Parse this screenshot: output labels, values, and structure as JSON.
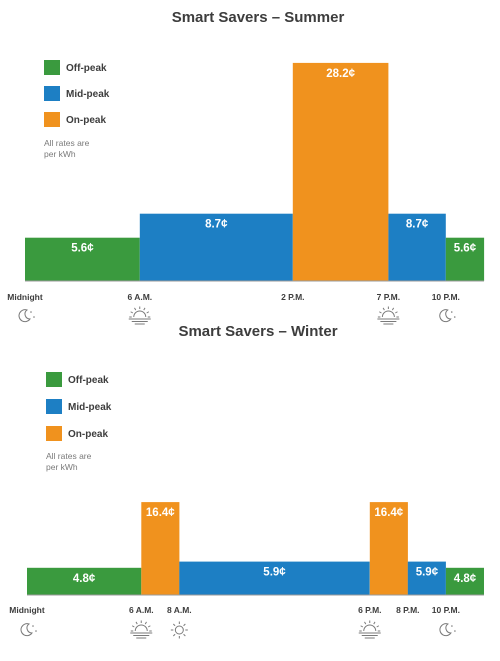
{
  "colors": {
    "off_peak": "#3a9a3e",
    "mid_peak": "#1d7fc4",
    "on_peak": "#f0921e",
    "baseline": "#9a9a9a",
    "text": "#3d3d3d"
  },
  "chart_data": [
    {
      "type": "bar",
      "title": "Smart Savers – Summer",
      "legend": [
        {
          "label": "Off-peak",
          "period": "off"
        },
        {
          "label": "Mid-peak",
          "period": "mid"
        },
        {
          "label": "On-peak",
          "period": "on"
        }
      ],
      "note": [
        "All rates are",
        "per kWh"
      ],
      "x_unit": "hour of day",
      "xlim": [
        0,
        24
      ],
      "ylim": [
        0,
        30
      ],
      "segments": [
        {
          "start": 0,
          "end": 6,
          "value": 5.6,
          "label": "5.6¢",
          "period": "off"
        },
        {
          "start": 6,
          "end": 14,
          "value": 8.7,
          "label": "8.7¢",
          "period": "mid"
        },
        {
          "start": 14,
          "end": 19,
          "value": 28.2,
          "label": "28.2¢",
          "period": "on"
        },
        {
          "start": 19,
          "end": 22,
          "value": 8.7,
          "label": "8.7¢",
          "period": "mid"
        },
        {
          "start": 22,
          "end": 24,
          "value": 5.6,
          "label": "5.6¢",
          "period": "off"
        }
      ],
      "ticks": [
        {
          "hour": 0,
          "label": "Midnight",
          "icon": "moon-icon"
        },
        {
          "hour": 6,
          "label": "6 A.M.",
          "icon": "sunrise-icon"
        },
        {
          "hour": 14,
          "label": "2 P.M.",
          "icon": ""
        },
        {
          "hour": 19,
          "label": "7 P.M.",
          "icon": "sunset-icon"
        },
        {
          "hour": 22,
          "label": "10 P.M.",
          "icon": "moon-icon"
        }
      ]
    },
    {
      "type": "bar",
      "title": "Smart Savers – Winter",
      "legend": [
        {
          "label": "Off-peak",
          "period": "off"
        },
        {
          "label": "Mid-peak",
          "period": "mid"
        },
        {
          "label": "On-peak",
          "period": "on"
        }
      ],
      "note": [
        "All rates are",
        "per kWh"
      ],
      "x_unit": "hour of day",
      "xlim": [
        0,
        24
      ],
      "ylim": [
        0,
        30
      ],
      "segments": [
        {
          "start": 0,
          "end": 6,
          "value": 4.8,
          "label": "4.8¢",
          "period": "off"
        },
        {
          "start": 6,
          "end": 8,
          "value": 16.4,
          "label": "16.4¢",
          "period": "on"
        },
        {
          "start": 8,
          "end": 18,
          "value": 5.9,
          "label": "5.9¢",
          "period": "mid"
        },
        {
          "start": 18,
          "end": 20,
          "value": 16.4,
          "label": "16.4¢",
          "period": "on"
        },
        {
          "start": 20,
          "end": 22,
          "value": 5.9,
          "label": "5.9¢",
          "period": "mid"
        },
        {
          "start": 22,
          "end": 24,
          "value": 4.8,
          "label": "4.8¢",
          "period": "off"
        }
      ],
      "ticks": [
        {
          "hour": 0,
          "label": "Midnight",
          "icon": "moon-icon"
        },
        {
          "hour": 6,
          "label": "6 A.M.",
          "icon": "sunrise-icon"
        },
        {
          "hour": 8,
          "label": "8 A.M.",
          "icon": "sun-icon"
        },
        {
          "hour": 18,
          "label": "6 P.M.",
          "icon": "sunset-icon"
        },
        {
          "hour": 20,
          "label": "8 P.M.",
          "icon": ""
        },
        {
          "hour": 22,
          "label": "10 P.M.",
          "icon": "moon-icon"
        }
      ]
    }
  ]
}
